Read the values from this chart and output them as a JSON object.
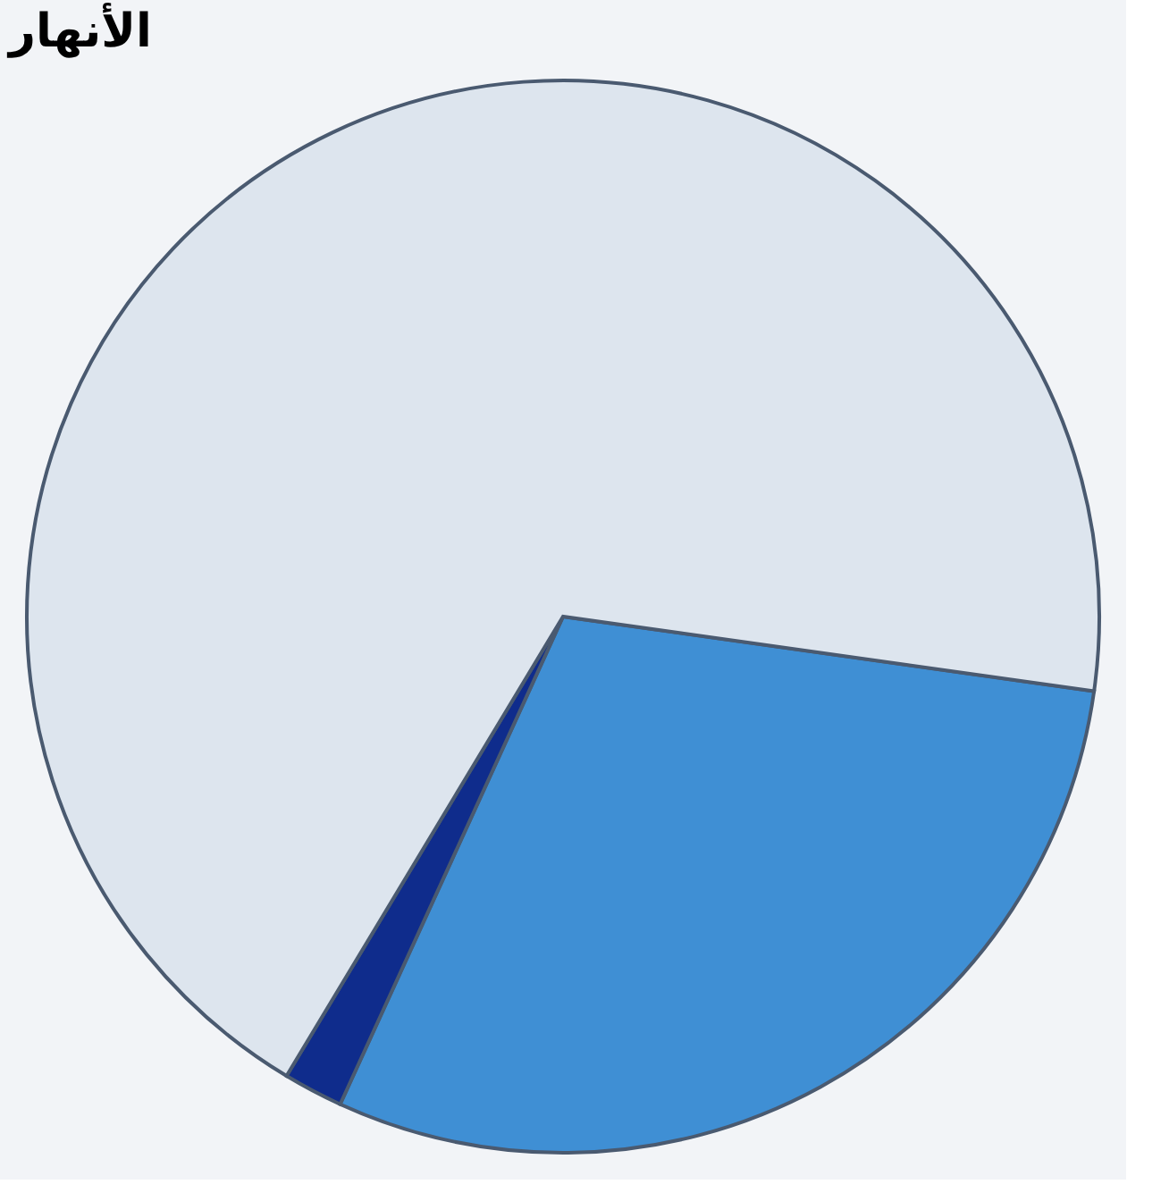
{
  "chart_data": {
    "type": "pie",
    "title": "الأنهار",
    "categories": [
      null,
      null,
      null
    ],
    "values": [
      29.6,
      1.8,
      68.6
    ],
    "colors": [
      "#3f8fd4",
      "#0f2c8c",
      "#dde5ee"
    ],
    "legend": false
  }
}
